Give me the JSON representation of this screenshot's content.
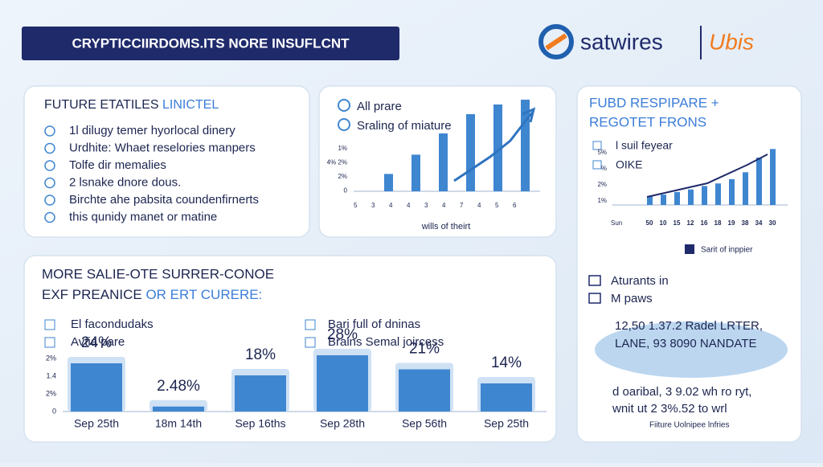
{
  "header": {
    "title": "CRYPTICCIIRDOMS.ITS NORE INSUFLCNT",
    "brand": "satwires",
    "brand2": "Ubis"
  },
  "panel1": {
    "title_dark": "FUTURE ETATILES",
    "title_light": "LINICTEL",
    "items": [
      "1l dilugy temer hyorlocal dinery",
      "Urdhite: Whaet reselories manpers",
      "Tolfe dir memalies",
      "2 lsnake dnore dous.",
      "Birchte ahe pabsita coundenfirnerts",
      "this qunidy manet or matine"
    ]
  },
  "panel2": {
    "legend": [
      "All prare",
      "Sraling of miature"
    ],
    "yticks": [
      "1%",
      "4% 2%",
      "2%",
      "0"
    ],
    "xticks": [
      "5",
      "3",
      "4",
      "4",
      "3",
      "4",
      "7",
      "4",
      "5",
      "6"
    ],
    "values": [
      18,
      38,
      60,
      80,
      90,
      95
    ],
    "ylim": [
      0,
      100
    ],
    "caption": "wills of theirt"
  },
  "panel3": {
    "title": [
      "FUBD RESPIPARE +",
      "REGOTET FRONS"
    ],
    "legend": [
      "l suil feyear",
      "OIKE"
    ],
    "yticks": [
      "5%",
      "%",
      "2%",
      "1%"
    ],
    "xticks": [
      "50",
      "10",
      "15",
      "12",
      "16",
      "18",
      "19",
      "38",
      "34",
      "30"
    ],
    "x_caption": "Sun",
    "values": [
      10,
      12,
      15,
      18,
      22,
      25,
      30,
      38,
      55,
      65
    ],
    "ylim": [
      0,
      70
    ],
    "key": "Sarit of inppier",
    "info": [
      "Aturants in",
      "M paws"
    ],
    "stats": [
      "12,50 1.37.2 Radel LRTER,",
      "LANE, 93 8090 NANDATE"
    ],
    "notes": [
      "d oaribal, 3 9.02 wh ro ryt,",
      "wnit ut 2 3%.52 to wrl"
    ],
    "footer": "Fiiture Uolnipee lnfries"
  },
  "panel4": {
    "title_line1": "MORE SALIE-OTE SURRER-CONOE",
    "title_dark": "EXF PREANICE",
    "title_light": "OR ERT CURERE:",
    "legend_left": [
      "El facondudaks",
      "Avtia pare"
    ],
    "legend_right": [
      "Bari full of dninas",
      "Brains Semal joircess"
    ],
    "yticks": [
      "2%",
      "1.4",
      "2%",
      "0"
    ],
    "categories": [
      "Sep 25th",
      "18m 14th",
      "Sep 16ths",
      "Sep 28th",
      "Sep 56th",
      "Sep 25th"
    ],
    "values": [
      24,
      2.48,
      18,
      28,
      21,
      14
    ],
    "value_labels": [
      "24%",
      "2.48%",
      "18%",
      "28%",
      "21%",
      "14%"
    ]
  }
}
